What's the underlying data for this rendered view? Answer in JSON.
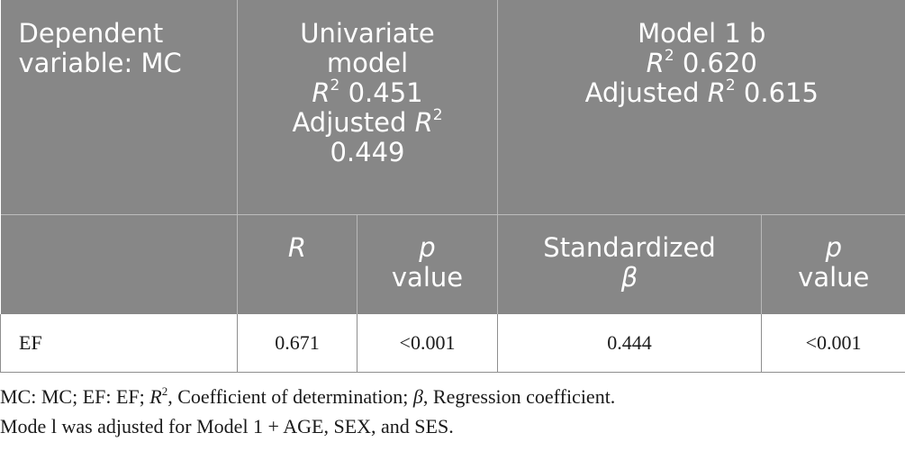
{
  "header_row_1": {
    "dependent_variable_line1": "Dependent",
    "dependent_variable_line2": "variable: MC",
    "univariate": {
      "title_line1": "Univariate",
      "title_line2": "model",
      "r2_symbol": "R",
      "r2_sup": "2",
      "r2_value": " 0.451",
      "adjusted_label": "Adjusted ",
      "adjusted_symbol": "R",
      "adjusted_sup": "2",
      "adjusted_value": "0.449"
    },
    "model1b": {
      "title": "Model 1 b",
      "r2_symbol": "R",
      "r2_sup": "2",
      "r2_value": " 0.620",
      "adjusted_label": "Adjusted ",
      "adjusted_symbol": "R",
      "adjusted_sup": "2",
      "adjusted_value": " 0.615"
    }
  },
  "header_row_2": {
    "r_label": "R",
    "p_label_1": "p",
    "value_label_1": "value",
    "standardized_label": "Standardized",
    "beta_symbol": "β",
    "p_label_2": "p",
    "value_label_2": "value"
  },
  "rows": [
    {
      "variable": "EF",
      "r": "0.671",
      "p_univariate": "<0.001",
      "standardized_beta": "0.444",
      "p_model": "<0.001"
    }
  ],
  "notes": {
    "line1_part1": "MC: MC; EF: EF; ",
    "line1_r": "R",
    "line1_sup": "2",
    "line1_part2": ", Coefficient of determination; ",
    "line1_beta": "β",
    "line1_part3": ", Regression coefficient.",
    "line2": "Mode l was adjusted for Model 1 + AGE, SEX, and SES."
  },
  "colors": {
    "header_background": "#878787",
    "header_text": "#ffffff",
    "body_text": "#1a1a1a",
    "grid_line": "#8e8e8e"
  }
}
